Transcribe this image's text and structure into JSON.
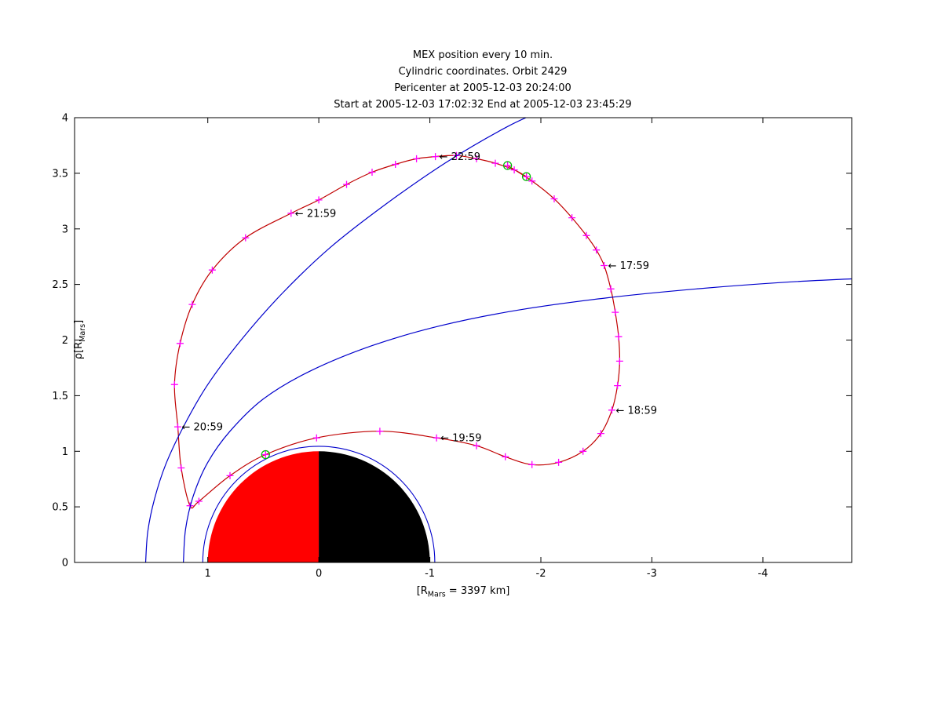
{
  "chart_data": {
    "type": "line",
    "title_lines": [
      "MEX position every 10 min.",
      "Cylindric coordinates. Orbit 2429",
      "Pericenter at 2005-12-03 20:24:00",
      "Start at 2005-12-03 17:02:32 End at 2005-12-03 23:45:29"
    ],
    "xlabel": {
      "pre": "[R",
      "sub": "Mars",
      "post": " = 3397 km]"
    },
    "ylabel": {
      "pre": "ρ[R",
      "sub": "Mars",
      "post": "]"
    },
    "x_axis": {
      "ticks": [
        1,
        0,
        -1,
        -2,
        -3,
        -4
      ],
      "range_left": 2.2,
      "range_right": -4.8,
      "reversed": true
    },
    "y_axis": {
      "ticks": [
        0,
        0.5,
        1,
        1.5,
        2,
        2.5,
        3,
        3.5,
        4
      ],
      "min": 0,
      "max": 4
    },
    "series": [
      {
        "name": "mex-orbit",
        "style": "line+markers",
        "color": "#c00000",
        "marker": "plus",
        "marker_color": "#ff00ff",
        "points": [
          [
            -1.7,
            3.57
          ],
          [
            -1.92,
            3.43
          ],
          [
            -2.12,
            3.27
          ],
          [
            -2.28,
            3.1
          ],
          [
            -2.41,
            2.94
          ],
          [
            -2.5,
            2.81
          ],
          [
            -2.57,
            2.67
          ],
          [
            -2.63,
            2.46
          ],
          [
            -2.67,
            2.25
          ],
          [
            -2.7,
            2.03
          ],
          [
            -2.71,
            1.81
          ],
          [
            -2.69,
            1.59
          ],
          [
            -2.64,
            1.37
          ],
          [
            -2.54,
            1.16
          ],
          [
            -2.38,
            1.0
          ],
          [
            -2.16,
            0.9
          ],
          [
            -1.92,
            0.88
          ],
          [
            -1.68,
            0.95
          ],
          [
            -1.42,
            1.05
          ],
          [
            -1.06,
            1.12
          ],
          [
            -0.55,
            1.18
          ],
          [
            0.02,
            1.12
          ],
          [
            0.48,
            0.97
          ],
          [
            0.8,
            0.78
          ],
          [
            1.08,
            0.55
          ],
          [
            1.16,
            0.51
          ],
          [
            1.24,
            0.85
          ],
          [
            1.27,
            1.22
          ],
          [
            1.3,
            1.6
          ],
          [
            1.25,
            1.97
          ],
          [
            1.14,
            2.32
          ],
          [
            0.96,
            2.63
          ],
          [
            0.66,
            2.92
          ],
          [
            0.25,
            3.14
          ],
          [
            0.0,
            3.26
          ],
          [
            -0.25,
            3.4
          ],
          [
            -0.48,
            3.51
          ],
          [
            -0.69,
            3.58
          ],
          [
            -0.88,
            3.63
          ],
          [
            -1.05,
            3.65
          ],
          [
            -1.24,
            3.66
          ],
          [
            -1.42,
            3.63
          ],
          [
            -1.59,
            3.59
          ],
          [
            -1.76,
            3.53
          ],
          [
            -1.87,
            3.47
          ]
        ]
      },
      {
        "name": "bow-shock",
        "style": "line",
        "color": "#0000cc",
        "points": [
          [
            1.56,
            0.0
          ],
          [
            1.54,
            0.28
          ],
          [
            1.48,
            0.57
          ],
          [
            1.38,
            0.88
          ],
          [
            1.22,
            1.22
          ],
          [
            1.0,
            1.6
          ],
          [
            0.7,
            2.0
          ],
          [
            0.33,
            2.42
          ],
          [
            -0.1,
            2.83
          ],
          [
            -0.6,
            3.22
          ],
          [
            -1.15,
            3.6
          ],
          [
            -1.7,
            3.92
          ],
          [
            -2.05,
            4.08
          ]
        ]
      },
      {
        "name": "magnetic-pileup-boundary",
        "style": "line",
        "color": "#0000cc",
        "points": [
          [
            1.22,
            0.0
          ],
          [
            1.2,
            0.3
          ],
          [
            1.13,
            0.6
          ],
          [
            1.0,
            0.9
          ],
          [
            0.8,
            1.18
          ],
          [
            0.5,
            1.47
          ],
          [
            0.08,
            1.72
          ],
          [
            -0.48,
            1.95
          ],
          [
            -1.1,
            2.13
          ],
          [
            -1.8,
            2.27
          ],
          [
            -2.6,
            2.38
          ],
          [
            -3.4,
            2.46
          ],
          [
            -4.2,
            2.52
          ],
          [
            -4.8,
            2.55
          ]
        ]
      }
    ],
    "planet": {
      "center_x": 0,
      "center_rho": 0,
      "radius": 1,
      "outline_circle_radius": 1.045,
      "dayside_color": "#ff0000",
      "nightside_color": "#000000",
      "outline_color": "#0000cc"
    },
    "events": [
      {
        "name": "start",
        "x": -1.7,
        "rho": 3.57
      },
      {
        "name": "end",
        "x": -1.87,
        "rho": 3.47
      },
      {
        "name": "pericenter",
        "x": 0.48,
        "rho": 0.97
      }
    ],
    "time_labels": [
      {
        "label": "17:59",
        "x": -2.57,
        "rho": 2.67
      },
      {
        "label": "18:59",
        "x": -2.64,
        "rho": 1.37
      },
      {
        "label": "19:59",
        "x": -1.06,
        "rho": 1.12
      },
      {
        "label": "20:59",
        "x": 1.27,
        "rho": 1.22
      },
      {
        "label": "21:59",
        "x": 0.25,
        "rho": 3.14
      },
      {
        "label": "22:59",
        "x": -1.05,
        "rho": 3.65
      }
    ],
    "label_arrow": "←"
  },
  "colors": {
    "axes": "#000000",
    "event_circle": "#00bb00",
    "marker": "#ff00ff",
    "background": "#ffffff"
  }
}
